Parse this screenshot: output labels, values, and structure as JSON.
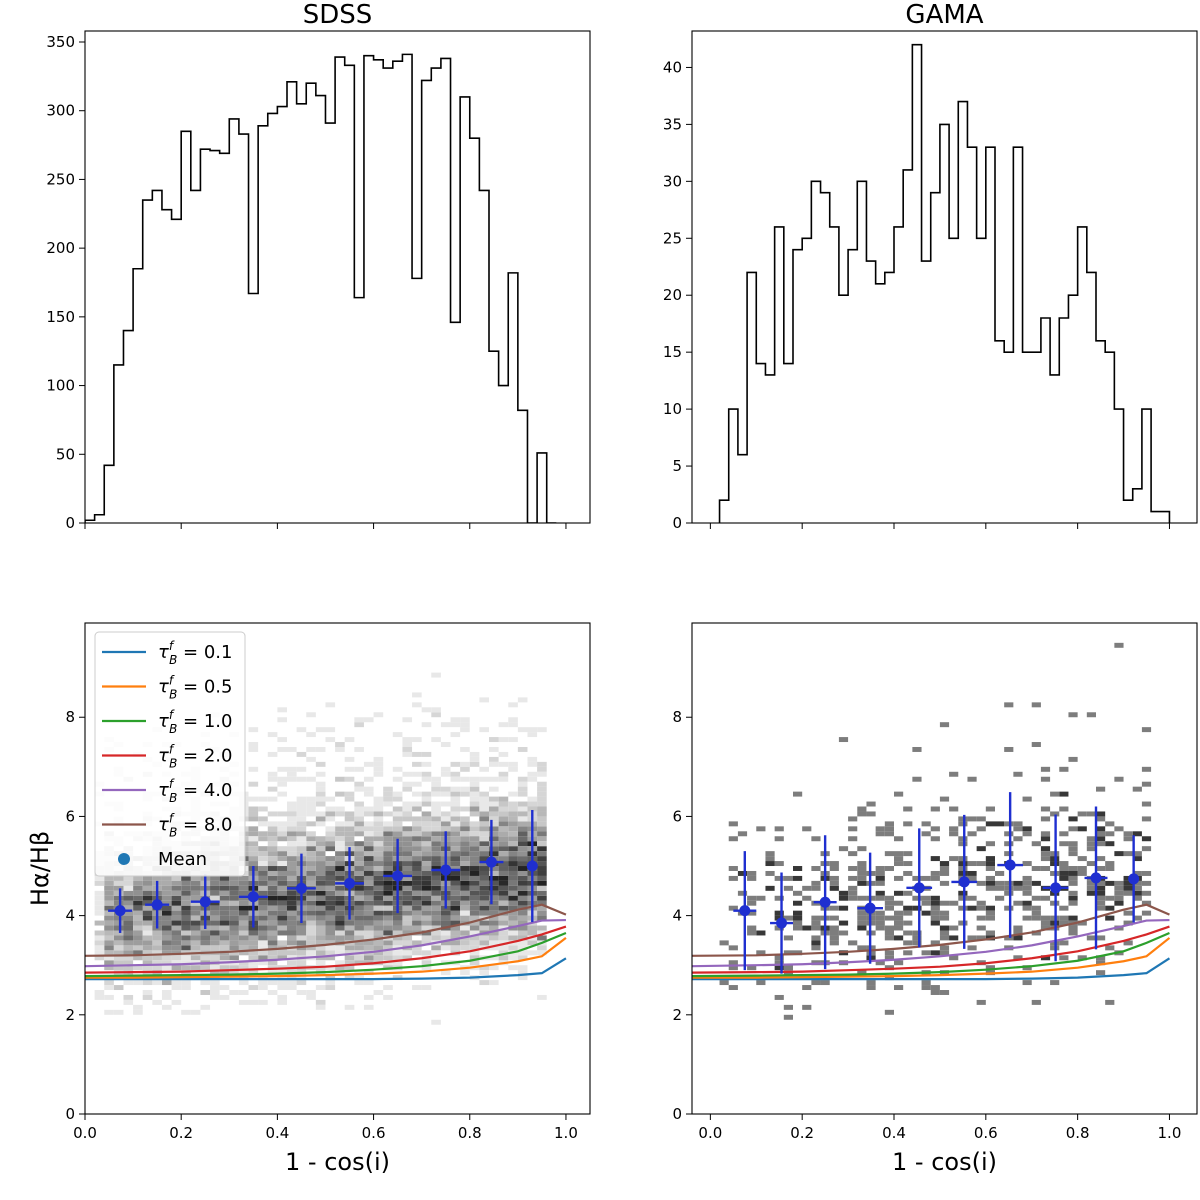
{
  "figure": {
    "description_note": null
  },
  "chart_data": [
    {
      "id": "sdss_hist",
      "type": "histogram",
      "title": "SDSS",
      "xlabel": "",
      "ylabel": "",
      "xlim": [
        0.0,
        1.05
      ],
      "ylim": [
        0,
        358
      ],
      "x_ticks": [
        0.0,
        0.2,
        0.4,
        0.6,
        0.8,
        1.0
      ],
      "x_tick_labels_visible": false,
      "y_ticks": [
        0,
        50,
        100,
        150,
        200,
        250,
        300,
        350
      ],
      "y_tick_labels": [
        "0",
        "50",
        "100",
        "150",
        "200",
        "250",
        "300",
        "350"
      ],
      "bin_start": 0.0,
      "bin_width": 0.02,
      "counts": [
        2,
        6,
        42,
        115,
        140,
        185,
        235,
        242,
        228,
        221,
        285,
        242,
        272,
        271,
        269,
        294,
        283,
        167,
        289,
        298,
        303,
        321,
        305,
        320,
        311,
        291,
        339,
        333,
        164,
        340,
        337,
        331,
        336,
        341,
        178,
        322,
        331,
        338,
        146,
        310,
        280,
        242,
        125,
        100,
        182,
        82,
        0,
        51,
        0
      ]
    },
    {
      "id": "gama_hist",
      "type": "histogram",
      "title": "GAMA",
      "xlabel": "",
      "ylabel": "",
      "xlim": [
        -0.04,
        1.06
      ],
      "ylim": [
        0,
        43.2
      ],
      "x_ticks": [
        0.0,
        0.2,
        0.4,
        0.6,
        0.8,
        1.0
      ],
      "x_tick_labels_visible": false,
      "y_ticks": [
        0,
        5,
        10,
        15,
        20,
        25,
        30,
        35,
        40
      ],
      "y_tick_labels": [
        "0",
        "5",
        "10",
        "15",
        "20",
        "25",
        "30",
        "35",
        "40"
      ],
      "bin_start": 0.02,
      "bin_width": 0.02,
      "counts": [
        2,
        10,
        6,
        22,
        14,
        13,
        26,
        14,
        24,
        25,
        30,
        29,
        26,
        20,
        24,
        30,
        23,
        21,
        22,
        26,
        31,
        42,
        23,
        29,
        35,
        25,
        37,
        33,
        25,
        33,
        16,
        15,
        33,
        15,
        15,
        18,
        13,
        18,
        20,
        26,
        22,
        16,
        15,
        10,
        2,
        3,
        10,
        1,
        1
      ]
    },
    {
      "id": "sdss_balmer",
      "type": "scatter",
      "title": "",
      "xlabel": "1 - cos(i)",
      "ylabel": "Hα/Hβ",
      "xlim": [
        0.0,
        1.05
      ],
      "ylim": [
        0,
        9.9
      ],
      "x_ticks": [
        0.0,
        0.2,
        0.4,
        0.6,
        0.8,
        1.0
      ],
      "x_tick_labels": [
        "0.0",
        "0.2",
        "0.4",
        "0.6",
        "0.8",
        "1.0"
      ],
      "y_ticks": [
        0,
        2,
        4,
        6,
        8
      ],
      "y_tick_labels": [
        "0",
        "2",
        "4",
        "6",
        "8"
      ],
      "background": "2D density histogram (grey scale) of galaxies",
      "mean_points": {
        "label": "Mean",
        "x": [
          0.073,
          0.15,
          0.25,
          0.35,
          0.45,
          0.55,
          0.65,
          0.75,
          0.845,
          0.93
        ],
        "y": [
          4.1,
          4.22,
          4.28,
          4.38,
          4.55,
          4.65,
          4.8,
          4.92,
          5.08,
          5.0
        ],
        "xerr": [
          0.025,
          0.025,
          0.03,
          0.03,
          0.03,
          0.03,
          0.03,
          0.03,
          0.025,
          0.0
        ],
        "yerr": [
          0.45,
          0.48,
          0.55,
          0.62,
          0.7,
          0.73,
          0.75,
          0.78,
          0.85,
          1.13
        ],
        "color": "#1f2fd0"
      },
      "model_lines": {
        "x": [
          0.0,
          0.1,
          0.2,
          0.3,
          0.4,
          0.5,
          0.6,
          0.7,
          0.8,
          0.9,
          0.95,
          1.0
        ],
        "series": [
          {
            "name": "τ_B^f = 0.1",
            "color": "#1f77b4",
            "y": [
              2.72,
              2.72,
              2.72,
              2.72,
              2.72,
              2.72,
              2.72,
              2.73,
              2.75,
              2.8,
              2.84,
              3.14
            ]
          },
          {
            "name": "τ_B^f = 0.5",
            "color": "#ff7f0e",
            "y": [
              2.75,
              2.75,
              2.76,
              2.77,
              2.78,
              2.8,
              2.83,
              2.87,
              2.95,
              3.08,
              3.18,
              3.55
            ]
          },
          {
            "name": "τ_B^f = 1.0",
            "color": "#2ca02c",
            "y": [
              2.78,
              2.79,
              2.8,
              2.81,
              2.83,
              2.86,
              2.91,
              2.98,
              3.09,
              3.28,
              3.45,
              3.65
            ]
          },
          {
            "name": "τ_B^f = 2.0",
            "color": "#d62728",
            "y": [
              2.85,
              2.86,
              2.87,
              2.9,
              2.93,
              2.97,
              3.04,
              3.14,
              3.28,
              3.49,
              3.62,
              3.78
            ]
          },
          {
            "name": "τ_B^f = 4.0",
            "color": "#9467bd",
            "y": [
              2.98,
              3.0,
              3.02,
              3.06,
              3.11,
              3.18,
              3.27,
              3.4,
              3.58,
              3.79,
              3.9,
              3.91
            ]
          },
          {
            "name": "τ_B^f = 8.0",
            "color": "#8c564b",
            "y": [
              3.19,
              3.2,
              3.23,
              3.27,
              3.33,
              3.41,
              3.52,
              3.66,
              3.86,
              4.12,
              4.22,
              4.02
            ]
          }
        ]
      },
      "legend": {
        "placement": "upper-left",
        "entries": [
          {
            "tau": "0.1",
            "color": "#1f77b4"
          },
          {
            "tau": "0.5",
            "color": "#ff7f0e"
          },
          {
            "tau": "1.0",
            "color": "#2ca02c"
          },
          {
            "tau": "2.0",
            "color": "#d62728"
          },
          {
            "tau": "4.0",
            "color": "#9467bd"
          },
          {
            "tau": "8.0",
            "color": "#8c564b"
          }
        ],
        "mean_label": "Mean",
        "mean_color": "#1f77b4"
      }
    },
    {
      "id": "gama_balmer",
      "type": "scatter",
      "title": "",
      "xlabel": "1 - cos(i)",
      "ylabel": "",
      "xlim": [
        -0.04,
        1.06
      ],
      "ylim": [
        0,
        9.9
      ],
      "x_ticks": [
        0.0,
        0.2,
        0.4,
        0.6,
        0.8,
        1.0
      ],
      "x_tick_labels": [
        "0.0",
        "0.2",
        "0.4",
        "0.6",
        "0.8",
        "1.0"
      ],
      "y_ticks": [
        0,
        2,
        4,
        6,
        8
      ],
      "y_tick_labels": [
        "0",
        "2",
        "4",
        "6",
        "8"
      ],
      "background": "2D density histogram (grey scale, sparse) of galaxies",
      "mean_points": {
        "label": "Mean",
        "x": [
          0.075,
          0.155,
          0.25,
          0.348,
          0.455,
          0.553,
          0.653,
          0.752,
          0.84,
          0.922
        ],
        "y": [
          4.1,
          3.85,
          4.27,
          4.15,
          4.56,
          4.68,
          5.02,
          4.56,
          4.76,
          4.74
        ],
        "xerr": [
          0.025,
          0.025,
          0.025,
          0.028,
          0.028,
          0.028,
          0.028,
          0.028,
          0.025,
          0.0
        ],
        "yerr": [
          1.2,
          1.02,
          1.35,
          1.12,
          1.2,
          1.35,
          1.47,
          1.48,
          1.44,
          0.88
        ],
        "color": "#1f2fd0"
      },
      "model_lines": {
        "x": [
          -0.04,
          0.1,
          0.2,
          0.3,
          0.4,
          0.5,
          0.6,
          0.7,
          0.8,
          0.9,
          0.95,
          1.0
        ],
        "series": [
          {
            "name": "τ_B^f = 0.1",
            "color": "#1f77b4",
            "y": [
              2.72,
              2.72,
              2.72,
              2.72,
              2.72,
              2.72,
              2.72,
              2.73,
              2.75,
              2.8,
              2.84,
              3.14
            ]
          },
          {
            "name": "τ_B^f = 0.5",
            "color": "#ff7f0e",
            "y": [
              2.75,
              2.75,
              2.76,
              2.77,
              2.78,
              2.8,
              2.83,
              2.87,
              2.95,
              3.08,
              3.18,
              3.55
            ]
          },
          {
            "name": "τ_B^f = 1.0",
            "color": "#2ca02c",
            "y": [
              2.78,
              2.79,
              2.8,
              2.81,
              2.83,
              2.86,
              2.91,
              2.98,
              3.09,
              3.28,
              3.45,
              3.65
            ]
          },
          {
            "name": "τ_B^f = 2.0",
            "color": "#d62728",
            "y": [
              2.85,
              2.86,
              2.87,
              2.9,
              2.93,
              2.97,
              3.04,
              3.14,
              3.28,
              3.49,
              3.62,
              3.78
            ]
          },
          {
            "name": "τ_B^f = 4.0",
            "color": "#9467bd",
            "y": [
              2.98,
              3.0,
              3.02,
              3.06,
              3.11,
              3.18,
              3.27,
              3.4,
              3.58,
              3.79,
              3.9,
              3.91
            ]
          },
          {
            "name": "τ_B^f = 8.0",
            "color": "#8c564b",
            "y": [
              3.19,
              3.2,
              3.23,
              3.27,
              3.33,
              3.41,
              3.52,
              3.66,
              3.86,
              4.12,
              4.22,
              4.02
            ]
          }
        ]
      }
    }
  ]
}
